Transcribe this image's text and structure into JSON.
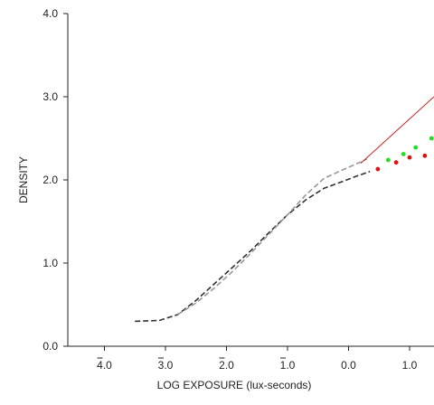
{
  "chart_data": {
    "type": "line",
    "xlabel": "LOG EXPOSURE (lux-seconds)",
    "ylabel": "DENSITY",
    "xlim": [
      -4.6,
      1.4
    ],
    "ylim": [
      0,
      4
    ],
    "grid": false,
    "x_ticks": [
      {
        "value": -4,
        "label": "4.0",
        "bar": "4"
      },
      {
        "value": -3,
        "label": "3.0",
        "bar": "3"
      },
      {
        "value": -2,
        "label": "2.0",
        "bar": "2"
      },
      {
        "value": -1,
        "label": "1.0",
        "bar": "1"
      },
      {
        "value": 0,
        "label": "0.0",
        "bar": ""
      },
      {
        "value": 1,
        "label": "1.0",
        "bar": ""
      }
    ],
    "y_ticks": [
      {
        "value": 0,
        "label": "0.0"
      },
      {
        "value": 1,
        "label": "1.0"
      },
      {
        "value": 2,
        "label": "2.0"
      },
      {
        "value": 3,
        "label": "3.0"
      },
      {
        "value": 4,
        "label": "4.0"
      }
    ],
    "series": [
      {
        "color": "#333333",
        "dash": "6,3",
        "points": [
          [
            -3.5,
            0.3
          ],
          [
            -3.1,
            0.31
          ],
          [
            -2.8,
            0.38
          ],
          [
            -2.5,
            0.55
          ],
          [
            -2.2,
            0.75
          ],
          [
            -1.9,
            0.95
          ],
          [
            -1.6,
            1.15
          ],
          [
            -1.3,
            1.37
          ],
          [
            -1.0,
            1.58
          ],
          [
            -0.7,
            1.76
          ],
          [
            -0.4,
            1.9
          ],
          [
            -0.1,
            1.98
          ],
          [
            0.15,
            2.05
          ],
          [
            0.35,
            2.1
          ]
        ]
      },
      {
        "color": "#999999",
        "dash": "6,3",
        "points": [
          [
            -2.8,
            0.38
          ],
          [
            -2.5,
            0.52
          ],
          [
            -2.2,
            0.7
          ],
          [
            -1.9,
            0.9
          ],
          [
            -1.6,
            1.12
          ],
          [
            -1.3,
            1.35
          ],
          [
            -1.0,
            1.58
          ],
          [
            -0.7,
            1.82
          ],
          [
            -0.4,
            2.02
          ],
          [
            -0.1,
            2.12
          ],
          [
            0.15,
            2.2
          ],
          [
            0.3,
            2.25
          ]
        ]
      },
      {
        "color": "#cc2222",
        "dash": "",
        "points": [
          [
            0.2,
            2.2
          ],
          [
            1.4,
            3.0
          ]
        ]
      }
    ],
    "scatter": [
      {
        "color": "#dd1111",
        "points": [
          [
            0.48,
            2.13
          ],
          [
            0.78,
            2.21
          ],
          [
            1.0,
            2.27
          ],
          [
            1.25,
            2.29
          ]
        ]
      },
      {
        "color": "#22dd22",
        "points": [
          [
            0.65,
            2.24
          ],
          [
            0.9,
            2.31
          ],
          [
            1.1,
            2.39
          ],
          [
            1.36,
            2.5
          ]
        ]
      }
    ]
  }
}
